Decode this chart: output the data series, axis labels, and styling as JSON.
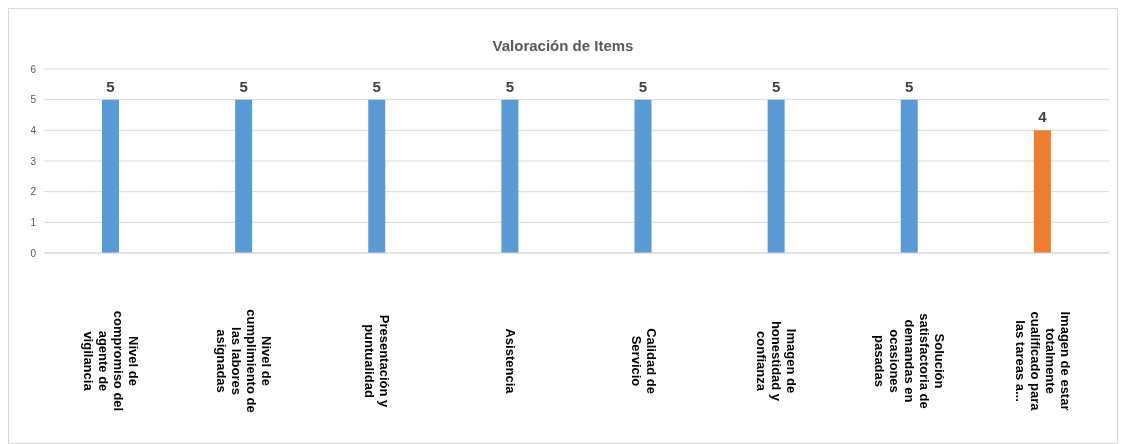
{
  "chart_data": {
    "type": "bar",
    "title": "Valoración de Items",
    "categories": [
      "Nivel de compromiso del agente de vigilancia",
      "Nivel de cumplimiento de las labores asignadas",
      "Presentación y puntualidad",
      "Asistencia",
      "Calidad de Servicio",
      "Imagen de honestidad y confianza",
      "Solución satisfactoria de demandas en ocasiones pasadas",
      "Imagen de estar totalmente cualificado para las tareas a..."
    ],
    "values": [
      5,
      5,
      5,
      5,
      5,
      5,
      5,
      4
    ],
    "colors": [
      "#5b9bd5",
      "#5b9bd5",
      "#5b9bd5",
      "#5b9bd5",
      "#5b9bd5",
      "#5b9bd5",
      "#5b9bd5",
      "#ed7d31"
    ],
    "ylim": [
      0,
      6
    ],
    "yticks": [
      0,
      1,
      2,
      3,
      4,
      5,
      6
    ],
    "grid": "y",
    "data_labels": true
  }
}
